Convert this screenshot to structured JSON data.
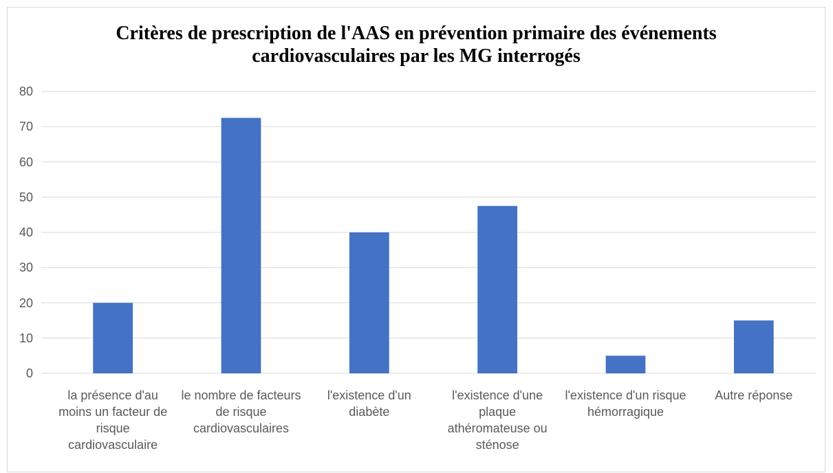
{
  "chart_data": {
    "type": "bar",
    "title": "Critères de prescription de l'AAS en prévention primaire des événements cardiovasculaires par les MG interrogés",
    "categories": [
      "la présence d'au moins un facteur de risque cardiovasculaire",
      "le nombre de facteurs de risque cardiovasculaires",
      "l'existence d'un diabète",
      "l'existence d'une plaque athéromateuse ou sténose",
      "l'existence d'un risque hémorragique",
      "Autre réponse"
    ],
    "values": [
      20,
      72.5,
      40,
      47.5,
      5,
      15
    ],
    "color": "#4472c4",
    "ylim": [
      0,
      80
    ],
    "yticks": [
      0,
      10,
      20,
      30,
      40,
      50,
      60,
      70,
      80
    ],
    "grid": true
  }
}
